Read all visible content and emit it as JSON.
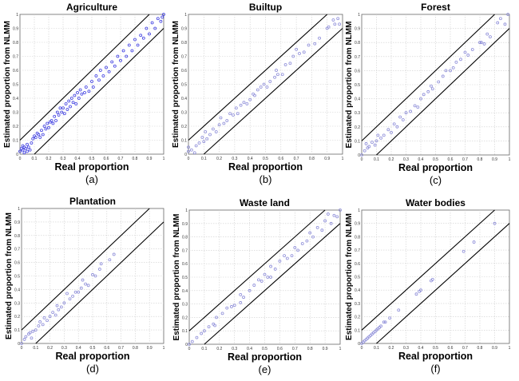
{
  "chart_data": [
    {
      "type": "scatter",
      "title": "Agriculture",
      "caption": "(a)",
      "xlabel": "Real proportion",
      "ylabel": "Estimated proportion from NLMM",
      "xlim": [
        0,
        1
      ],
      "ylim": [
        0,
        1
      ],
      "grid": true,
      "marker_color": "#3b3be0",
      "bounds": [
        "y = x + 0.1",
        "y = x - 0.1"
      ],
      "points": [
        [
          0,
          0.02
        ],
        [
          0.01,
          0.04
        ],
        [
          0.02,
          0.03
        ],
        [
          0.02,
          0.06
        ],
        [
          0.03,
          0.01
        ],
        [
          0.03,
          0.05
        ],
        [
          0.04,
          0.04
        ],
        [
          0.05,
          0.07
        ],
        [
          0.05,
          0.02
        ],
        [
          0.06,
          0.05
        ],
        [
          0.07,
          0.03
        ],
        [
          0.08,
          0.08
        ],
        [
          0.09,
          0.11
        ],
        [
          0.1,
          0.13
        ],
        [
          0.11,
          0.12
        ],
        [
          0.12,
          0.15
        ],
        [
          0.13,
          0.14
        ],
        [
          0.14,
          0.12
        ],
        [
          0.15,
          0.17
        ],
        [
          0.16,
          0.14
        ],
        [
          0.17,
          0.2
        ],
        [
          0.18,
          0.18
        ],
        [
          0.19,
          0.22
        ],
        [
          0.2,
          0.19
        ],
        [
          0.21,
          0.23
        ],
        [
          0.22,
          0.24
        ],
        [
          0.23,
          0.22
        ],
        [
          0.24,
          0.27
        ],
        [
          0.25,
          0.24
        ],
        [
          0.26,
          0.3
        ],
        [
          0.27,
          0.28
        ],
        [
          0.28,
          0.33
        ],
        [
          0.29,
          0.3
        ],
        [
          0.3,
          0.33
        ],
        [
          0.31,
          0.29
        ],
        [
          0.32,
          0.36
        ],
        [
          0.33,
          0.32
        ],
        [
          0.34,
          0.38
        ],
        [
          0.35,
          0.34
        ],
        [
          0.36,
          0.4
        ],
        [
          0.37,
          0.37
        ],
        [
          0.38,
          0.42
        ],
        [
          0.39,
          0.36
        ],
        [
          0.4,
          0.44
        ],
        [
          0.41,
          0.4
        ],
        [
          0.42,
          0.46
        ],
        [
          0.43,
          0.43
        ],
        [
          0.45,
          0.44
        ],
        [
          0.46,
          0.48
        ],
        [
          0.48,
          0.45
        ],
        [
          0.5,
          0.52
        ],
        [
          0.51,
          0.48
        ],
        [
          0.53,
          0.56
        ],
        [
          0.55,
          0.53
        ],
        [
          0.56,
          0.6
        ],
        [
          0.58,
          0.56
        ],
        [
          0.6,
          0.62
        ],
        [
          0.62,
          0.59
        ],
        [
          0.64,
          0.66
        ],
        [
          0.66,
          0.63
        ],
        [
          0.68,
          0.7
        ],
        [
          0.7,
          0.67
        ],
        [
          0.72,
          0.74
        ],
        [
          0.74,
          0.7
        ],
        [
          0.76,
          0.78
        ],
        [
          0.78,
          0.74
        ],
        [
          0.8,
          0.82
        ],
        [
          0.82,
          0.78
        ],
        [
          0.84,
          0.85
        ],
        [
          0.86,
          0.83
        ],
        [
          0.88,
          0.9
        ],
        [
          0.9,
          0.86
        ],
        [
          0.92,
          0.94
        ],
        [
          0.94,
          0.9
        ],
        [
          0.96,
          0.97
        ],
        [
          0.98,
          0.95
        ],
        [
          1,
          1
        ],
        [
          0.99,
          0.98
        ]
      ]
    },
    {
      "type": "scatter",
      "title": "Builtup",
      "caption": "(b)",
      "xlabel": "Real proportion",
      "ylabel": "Estimated proportion from NLMM",
      "xlim": [
        0,
        1
      ],
      "ylim": [
        0,
        1
      ],
      "grid": true,
      "marker_color": "#8c8cd8",
      "bounds": [
        "y = x + 0.1",
        "y = x - 0.1"
      ],
      "points": [
        [
          0,
          0.05
        ],
        [
          0,
          0.02
        ],
        [
          0.02,
          0.03
        ],
        [
          0.04,
          0.01
        ],
        [
          0.05,
          0.06
        ],
        [
          0.07,
          0.08
        ],
        [
          0.09,
          0.12
        ],
        [
          0.1,
          0.09
        ],
        [
          0.11,
          0.16
        ],
        [
          0.12,
          0.11
        ],
        [
          0.14,
          0.14
        ],
        [
          0.16,
          0.18
        ],
        [
          0.18,
          0.16
        ],
        [
          0.2,
          0.21
        ],
        [
          0.21,
          0.26
        ],
        [
          0.23,
          0.22
        ],
        [
          0.25,
          0.24
        ],
        [
          0.27,
          0.29
        ],
        [
          0.29,
          0.28
        ],
        [
          0.31,
          0.33
        ],
        [
          0.32,
          0.29
        ],
        [
          0.34,
          0.35
        ],
        [
          0.36,
          0.37
        ],
        [
          0.38,
          0.36
        ],
        [
          0.4,
          0.39
        ],
        [
          0.42,
          0.43
        ],
        [
          0.43,
          0.42
        ],
        [
          0.45,
          0.46
        ],
        [
          0.47,
          0.48
        ],
        [
          0.49,
          0.5
        ],
        [
          0.51,
          0.48
        ],
        [
          0.53,
          0.52
        ],
        [
          0.56,
          0.55
        ],
        [
          0.57,
          0.6
        ],
        [
          0.58,
          0.57
        ],
        [
          0.61,
          0.57
        ],
        [
          0.63,
          0.64
        ],
        [
          0.66,
          0.65
        ],
        [
          0.68,
          0.7
        ],
        [
          0.7,
          0.75
        ],
        [
          0.72,
          0.72
        ],
        [
          0.75,
          0.73
        ],
        [
          0.78,
          0.78
        ],
        [
          0.82,
          0.79
        ],
        [
          0.85,
          0.83
        ],
        [
          0.9,
          0.9
        ],
        [
          0.91,
          0.91
        ],
        [
          0.94,
          0.96
        ],
        [
          0.95,
          0.93
        ],
        [
          0.97,
          0.97
        ],
        [
          0.98,
          0.93
        ]
      ]
    },
    {
      "type": "scatter",
      "title": "Forest",
      "caption": "(c)",
      "xlabel": "Real proportion",
      "ylabel": "Estimated proportion from NLMM",
      "xlim": [
        0,
        1
      ],
      "ylim": [
        0,
        1
      ],
      "grid": true,
      "marker_color": "#8c8cd8",
      "bounds": [
        "y = x + 0.1",
        "y = x - 0.1"
      ],
      "points": [
        [
          0,
          0
        ],
        [
          0.02,
          0.03
        ],
        [
          0.03,
          0.08
        ],
        [
          0.04,
          0.05
        ],
        [
          0.05,
          0.06
        ],
        [
          0.07,
          0.09
        ],
        [
          0.09,
          0.07
        ],
        [
          0.1,
          0.1
        ],
        [
          0.11,
          0.14
        ],
        [
          0.13,
          0.12
        ],
        [
          0.15,
          0.14
        ],
        [
          0.18,
          0.18
        ],
        [
          0.2,
          0.16
        ],
        [
          0.22,
          0.22
        ],
        [
          0.24,
          0.2
        ],
        [
          0.26,
          0.27
        ],
        [
          0.28,
          0.25
        ],
        [
          0.3,
          0.3
        ],
        [
          0.33,
          0.31
        ],
        [
          0.36,
          0.35
        ],
        [
          0.38,
          0.34
        ],
        [
          0.4,
          0.4
        ],
        [
          0.42,
          0.43
        ],
        [
          0.45,
          0.45
        ],
        [
          0.47,
          0.49
        ],
        [
          0.48,
          0.47
        ],
        [
          0.52,
          0.52
        ],
        [
          0.55,
          0.56
        ],
        [
          0.57,
          0.6
        ],
        [
          0.6,
          0.6
        ],
        [
          0.62,
          0.62
        ],
        [
          0.64,
          0.66
        ],
        [
          0.67,
          0.68
        ],
        [
          0.7,
          0.73
        ],
        [
          0.72,
          0.71
        ],
        [
          0.75,
          0.75
        ],
        [
          0.8,
          0.8
        ],
        [
          0.81,
          0.8
        ],
        [
          0.83,
          0.79
        ],
        [
          0.85,
          0.86
        ],
        [
          0.87,
          0.84
        ],
        [
          0.92,
          0.94
        ],
        [
          0.94,
          0.97
        ],
        [
          0.97,
          0.93
        ],
        [
          0.99,
          1
        ]
      ]
    },
    {
      "type": "scatter",
      "title": "Plantation",
      "caption": "(d)",
      "xlabel": "Real proportion",
      "ylabel": "Estimated proportion from NLMM",
      "xlim": [
        0,
        1
      ],
      "ylim": [
        0,
        1
      ],
      "grid": true,
      "marker_color": "#8c8cd8",
      "bounds": [
        "y = x + 0.1",
        "y = x - 0.1"
      ],
      "points": [
        [
          0,
          0
        ],
        [
          0.02,
          0.03
        ],
        [
          0.03,
          0.05
        ],
        [
          0.05,
          0.07
        ],
        [
          0.06,
          0.08
        ],
        [
          0.07,
          0.04
        ],
        [
          0.08,
          0.09
        ],
        [
          0.1,
          0.1
        ],
        [
          0.12,
          0.13
        ],
        [
          0.13,
          0.16
        ],
        [
          0.15,
          0.14
        ],
        [
          0.16,
          0.19
        ],
        [
          0.18,
          0.17
        ],
        [
          0.2,
          0.2
        ],
        [
          0.22,
          0.23
        ],
        [
          0.24,
          0.21
        ],
        [
          0.25,
          0.28
        ],
        [
          0.26,
          0.25
        ],
        [
          0.28,
          0.27
        ],
        [
          0.3,
          0.3
        ],
        [
          0.32,
          0.37
        ],
        [
          0.34,
          0.33
        ],
        [
          0.36,
          0.35
        ],
        [
          0.38,
          0.38
        ],
        [
          0.4,
          0.38
        ],
        [
          0.42,
          0.41
        ],
        [
          0.43,
          0.47
        ],
        [
          0.45,
          0.44
        ],
        [
          0.47,
          0.43
        ],
        [
          0.5,
          0.51
        ],
        [
          0.52,
          0.5
        ],
        [
          0.55,
          0.55
        ],
        [
          0.56,
          0.59
        ],
        [
          0.62,
          0.62
        ],
        [
          0.65,
          0.66
        ]
      ]
    },
    {
      "type": "scatter",
      "title": "Waste land",
      "caption": "(e)",
      "xlabel": "Real proportion",
      "ylabel": "Estimated proportion from NLMM",
      "xlim": [
        0,
        1
      ],
      "ylim": [
        0,
        1
      ],
      "grid": true,
      "marker_color": "#8c8cd8",
      "bounds": [
        "y = x + 0.1",
        "y = x - 0.1"
      ],
      "points": [
        [
          0,
          0
        ],
        [
          0.02,
          0.02
        ],
        [
          0.05,
          0.05
        ],
        [
          0.08,
          0.08
        ],
        [
          0.1,
          0.1
        ],
        [
          0.13,
          0.13
        ],
        [
          0.16,
          0.15
        ],
        [
          0.17,
          0.14
        ],
        [
          0.18,
          0.2
        ],
        [
          0.22,
          0.23
        ],
        [
          0.25,
          0.27
        ],
        [
          0.28,
          0.28
        ],
        [
          0.3,
          0.29
        ],
        [
          0.34,
          0.37
        ],
        [
          0.34,
          0.31
        ],
        [
          0.36,
          0.35
        ],
        [
          0.4,
          0.4
        ],
        [
          0.43,
          0.44
        ],
        [
          0.46,
          0.48
        ],
        [
          0.48,
          0.47
        ],
        [
          0.5,
          0.52
        ],
        [
          0.52,
          0.5
        ],
        [
          0.54,
          0.58
        ],
        [
          0.54,
          0.5
        ],
        [
          0.57,
          0.56
        ],
        [
          0.6,
          0.62
        ],
        [
          0.63,
          0.66
        ],
        [
          0.65,
          0.64
        ],
        [
          0.68,
          0.66
        ],
        [
          0.7,
          0.72
        ],
        [
          0.72,
          0.7
        ],
        [
          0.75,
          0.75
        ],
        [
          0.78,
          0.77
        ],
        [
          0.8,
          0.83
        ],
        [
          0.82,
          0.8
        ],
        [
          0.85,
          0.87
        ],
        [
          0.88,
          0.85
        ],
        [
          0.9,
          0.92
        ],
        [
          0.92,
          0.97
        ],
        [
          0.94,
          0.9
        ],
        [
          0.96,
          0.96
        ],
        [
          0.98,
          0.95
        ],
        [
          1,
          1
        ]
      ]
    },
    {
      "type": "scatter",
      "title": "Water bodies",
      "caption": "(f)",
      "xlabel": "Real proportion",
      "ylabel": "Estimated proportion from NLMM",
      "xlim": [
        0,
        1
      ],
      "ylim": [
        0,
        1
      ],
      "grid": true,
      "marker_color": "#8c8cd8",
      "bounds": [
        "y = x + 0.1",
        "y = x - 0.1"
      ],
      "points": [
        [
          0,
          0
        ],
        [
          0.01,
          0.01
        ],
        [
          0.02,
          0.02
        ],
        [
          0.03,
          0.03
        ],
        [
          0.04,
          0.04
        ],
        [
          0.05,
          0.05
        ],
        [
          0.06,
          0.06
        ],
        [
          0.07,
          0.07
        ],
        [
          0.08,
          0.08
        ],
        [
          0.09,
          0.09
        ],
        [
          0.1,
          0.1
        ],
        [
          0.11,
          0.11
        ],
        [
          0.12,
          0.12
        ],
        [
          0.13,
          0.13
        ],
        [
          0.15,
          0.16
        ],
        [
          0.16,
          0.16
        ],
        [
          0.19,
          0.19
        ],
        [
          0.25,
          0.25
        ],
        [
          0.37,
          0.37
        ],
        [
          0.39,
          0.39
        ],
        [
          0.4,
          0.4
        ],
        [
          0.47,
          0.47
        ],
        [
          0.48,
          0.48
        ],
        [
          0.69,
          0.69
        ],
        [
          0.76,
          0.76
        ],
        [
          0.9,
          0.9
        ]
      ]
    }
  ],
  "ticks": [
    "0",
    "0.1",
    "0.2",
    "0.3",
    "0.4",
    "0.5",
    "0.6",
    "0.7",
    "0.8",
    "0.9",
    "1"
  ]
}
